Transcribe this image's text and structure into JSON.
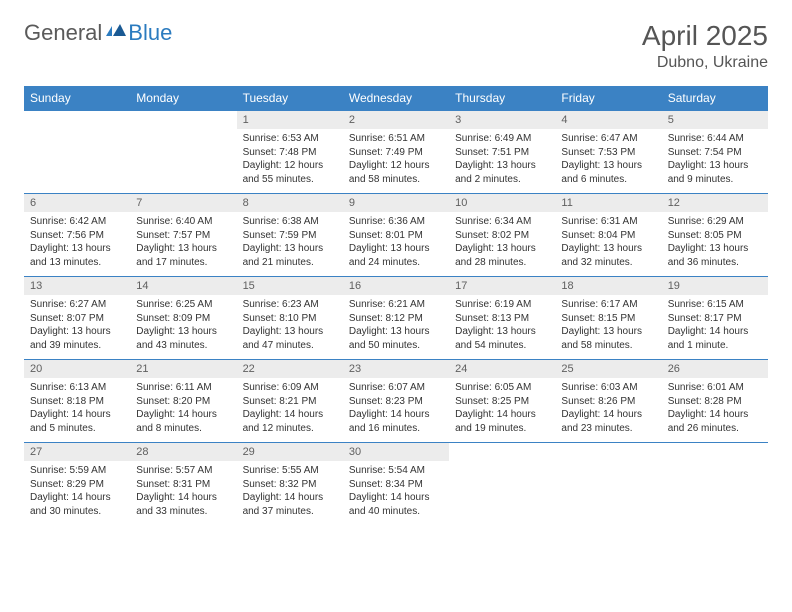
{
  "brand": {
    "part1": "General",
    "part2": "Blue"
  },
  "title": "April 2025",
  "location": "Dubno, Ukraine",
  "colors": {
    "header_bg": "#3b82c4",
    "header_text": "#ffffff",
    "daynum_bg": "#ececec",
    "daynum_text": "#606060",
    "border": "#3b82c4",
    "title_color": "#555555",
    "brand_gray": "#5a5a5a",
    "brand_blue": "#2b7bbf"
  },
  "day_names": [
    "Sunday",
    "Monday",
    "Tuesday",
    "Wednesday",
    "Thursday",
    "Friday",
    "Saturday"
  ],
  "weeks": [
    [
      null,
      null,
      {
        "n": "1",
        "sr": "Sunrise: 6:53 AM",
        "ss": "Sunset: 7:48 PM",
        "d1": "Daylight: 12 hours",
        "d2": "and 55 minutes."
      },
      {
        "n": "2",
        "sr": "Sunrise: 6:51 AM",
        "ss": "Sunset: 7:49 PM",
        "d1": "Daylight: 12 hours",
        "d2": "and 58 minutes."
      },
      {
        "n": "3",
        "sr": "Sunrise: 6:49 AM",
        "ss": "Sunset: 7:51 PM",
        "d1": "Daylight: 13 hours",
        "d2": "and 2 minutes."
      },
      {
        "n": "4",
        "sr": "Sunrise: 6:47 AM",
        "ss": "Sunset: 7:53 PM",
        "d1": "Daylight: 13 hours",
        "d2": "and 6 minutes."
      },
      {
        "n": "5",
        "sr": "Sunrise: 6:44 AM",
        "ss": "Sunset: 7:54 PM",
        "d1": "Daylight: 13 hours",
        "d2": "and 9 minutes."
      }
    ],
    [
      {
        "n": "6",
        "sr": "Sunrise: 6:42 AM",
        "ss": "Sunset: 7:56 PM",
        "d1": "Daylight: 13 hours",
        "d2": "and 13 minutes."
      },
      {
        "n": "7",
        "sr": "Sunrise: 6:40 AM",
        "ss": "Sunset: 7:57 PM",
        "d1": "Daylight: 13 hours",
        "d2": "and 17 minutes."
      },
      {
        "n": "8",
        "sr": "Sunrise: 6:38 AM",
        "ss": "Sunset: 7:59 PM",
        "d1": "Daylight: 13 hours",
        "d2": "and 21 minutes."
      },
      {
        "n": "9",
        "sr": "Sunrise: 6:36 AM",
        "ss": "Sunset: 8:01 PM",
        "d1": "Daylight: 13 hours",
        "d2": "and 24 minutes."
      },
      {
        "n": "10",
        "sr": "Sunrise: 6:34 AM",
        "ss": "Sunset: 8:02 PM",
        "d1": "Daylight: 13 hours",
        "d2": "and 28 minutes."
      },
      {
        "n": "11",
        "sr": "Sunrise: 6:31 AM",
        "ss": "Sunset: 8:04 PM",
        "d1": "Daylight: 13 hours",
        "d2": "and 32 minutes."
      },
      {
        "n": "12",
        "sr": "Sunrise: 6:29 AM",
        "ss": "Sunset: 8:05 PM",
        "d1": "Daylight: 13 hours",
        "d2": "and 36 minutes."
      }
    ],
    [
      {
        "n": "13",
        "sr": "Sunrise: 6:27 AM",
        "ss": "Sunset: 8:07 PM",
        "d1": "Daylight: 13 hours",
        "d2": "and 39 minutes."
      },
      {
        "n": "14",
        "sr": "Sunrise: 6:25 AM",
        "ss": "Sunset: 8:09 PM",
        "d1": "Daylight: 13 hours",
        "d2": "and 43 minutes."
      },
      {
        "n": "15",
        "sr": "Sunrise: 6:23 AM",
        "ss": "Sunset: 8:10 PM",
        "d1": "Daylight: 13 hours",
        "d2": "and 47 minutes."
      },
      {
        "n": "16",
        "sr": "Sunrise: 6:21 AM",
        "ss": "Sunset: 8:12 PM",
        "d1": "Daylight: 13 hours",
        "d2": "and 50 minutes."
      },
      {
        "n": "17",
        "sr": "Sunrise: 6:19 AM",
        "ss": "Sunset: 8:13 PM",
        "d1": "Daylight: 13 hours",
        "d2": "and 54 minutes."
      },
      {
        "n": "18",
        "sr": "Sunrise: 6:17 AM",
        "ss": "Sunset: 8:15 PM",
        "d1": "Daylight: 13 hours",
        "d2": "and 58 minutes."
      },
      {
        "n": "19",
        "sr": "Sunrise: 6:15 AM",
        "ss": "Sunset: 8:17 PM",
        "d1": "Daylight: 14 hours",
        "d2": "and 1 minute."
      }
    ],
    [
      {
        "n": "20",
        "sr": "Sunrise: 6:13 AM",
        "ss": "Sunset: 8:18 PM",
        "d1": "Daylight: 14 hours",
        "d2": "and 5 minutes."
      },
      {
        "n": "21",
        "sr": "Sunrise: 6:11 AM",
        "ss": "Sunset: 8:20 PM",
        "d1": "Daylight: 14 hours",
        "d2": "and 8 minutes."
      },
      {
        "n": "22",
        "sr": "Sunrise: 6:09 AM",
        "ss": "Sunset: 8:21 PM",
        "d1": "Daylight: 14 hours",
        "d2": "and 12 minutes."
      },
      {
        "n": "23",
        "sr": "Sunrise: 6:07 AM",
        "ss": "Sunset: 8:23 PM",
        "d1": "Daylight: 14 hours",
        "d2": "and 16 minutes."
      },
      {
        "n": "24",
        "sr": "Sunrise: 6:05 AM",
        "ss": "Sunset: 8:25 PM",
        "d1": "Daylight: 14 hours",
        "d2": "and 19 minutes."
      },
      {
        "n": "25",
        "sr": "Sunrise: 6:03 AM",
        "ss": "Sunset: 8:26 PM",
        "d1": "Daylight: 14 hours",
        "d2": "and 23 minutes."
      },
      {
        "n": "26",
        "sr": "Sunrise: 6:01 AM",
        "ss": "Sunset: 8:28 PM",
        "d1": "Daylight: 14 hours",
        "d2": "and 26 minutes."
      }
    ],
    [
      {
        "n": "27",
        "sr": "Sunrise: 5:59 AM",
        "ss": "Sunset: 8:29 PM",
        "d1": "Daylight: 14 hours",
        "d2": "and 30 minutes."
      },
      {
        "n": "28",
        "sr": "Sunrise: 5:57 AM",
        "ss": "Sunset: 8:31 PM",
        "d1": "Daylight: 14 hours",
        "d2": "and 33 minutes."
      },
      {
        "n": "29",
        "sr": "Sunrise: 5:55 AM",
        "ss": "Sunset: 8:32 PM",
        "d1": "Daylight: 14 hours",
        "d2": "and 37 minutes."
      },
      {
        "n": "30",
        "sr": "Sunrise: 5:54 AM",
        "ss": "Sunset: 8:34 PM",
        "d1": "Daylight: 14 hours",
        "d2": "and 40 minutes."
      },
      null,
      null,
      null
    ]
  ]
}
